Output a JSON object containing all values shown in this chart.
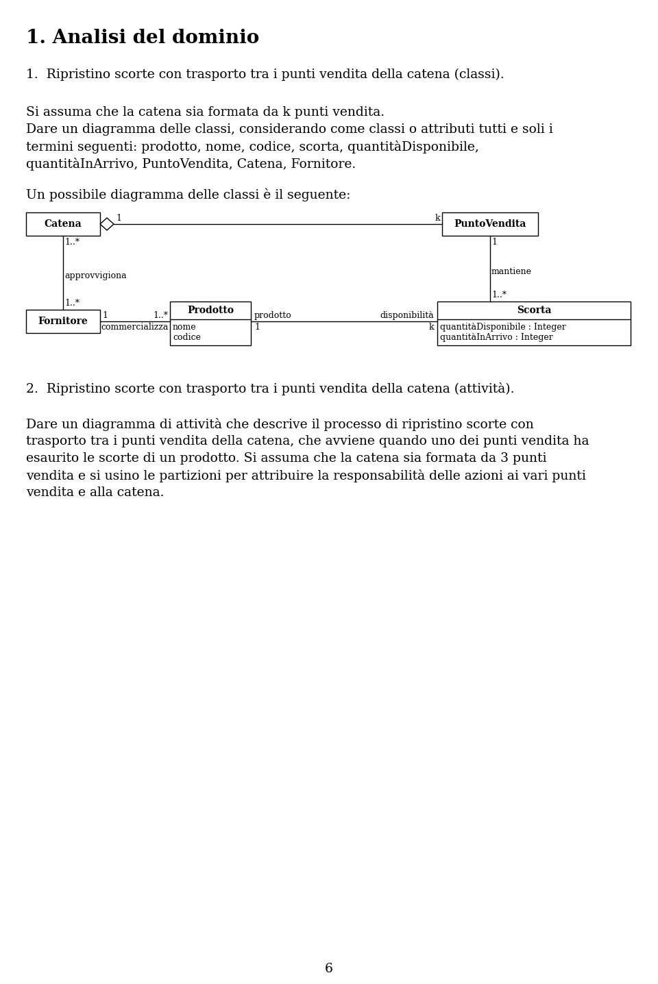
{
  "title": "1. Analisi del dominio",
  "para1": "1.  Ripristino scorte con trasporto tra i punti vendita della catena (classi).",
  "para2_line1": "Si assuma che la catena sia formata da k punti vendita.",
  "para2_line2": "Dare un diagramma delle classi, considerando come classi o attributi tutti e soli i",
  "para2_line3": "termini seguenti: prodotto, nome, codice, scorta, quantitàDisponibile,",
  "para2_line4": "quantitàInArrivo, PuntoVendita, Catena, Fornitore.",
  "para3": "Un possibile diagramma delle classi è il seguente:",
  "para4": "2.  Ripristino scorte con trasporto tra i punti vendita della catena (attività).",
  "para5_line1": "Dare un diagramma di attività che descrive il processo di ripristino scorte con",
  "para5_line2": "trasporto tra i punti vendita della catena, che avviene quando uno dei punti vendita ha",
  "para5_line3": "esaurito le scorte di un prodotto. Si assuma che la catena sia formata da 3 punti",
  "para5_line4": "vendita e si usino le partizioni per attribuire la responsabilità delle azioni ai vari punti",
  "para5_line5": "vendita e alla catena.",
  "page_number": "6",
  "background_color": "#ffffff",
  "text_color": "#000000"
}
